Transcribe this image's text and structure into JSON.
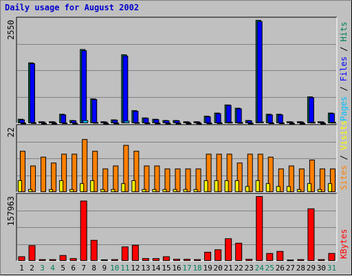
{
  "chart_data": {
    "type": "bar",
    "title": "Daily usage for August 2002",
    "categories": [
      "1",
      "2",
      "3",
      "4",
      "5",
      "6",
      "7",
      "8",
      "9",
      "10",
      "11",
      "12",
      "13",
      "14",
      "15",
      "16",
      "17",
      "18",
      "19",
      "20",
      "21",
      "22",
      "23",
      "24",
      "25",
      "26",
      "27",
      "28",
      "29",
      "30",
      "31"
    ],
    "weekend_days": [
      "3",
      "4",
      "10",
      "11",
      "17",
      "18",
      "24",
      "25",
      "31"
    ],
    "colors": {
      "hits": "#00805c",
      "files": "#0000ff",
      "pages": "#00c0ff",
      "sites": "#ff8000",
      "visits": "#ffff00",
      "kbytes": "#ff0000",
      "weekday_tick": "#000000",
      "weekend_tick": "#00805c",
      "title": "#0000cc",
      "panel": "#c0c0c0"
    },
    "panels": [
      {
        "ymax_label": "2550",
        "ylim": [
          0,
          2550
        ],
        "legend": [
          {
            "text": "Pages",
            "series": "pages"
          },
          {
            "text": " / ",
            "series": null
          },
          {
            "text": "Files",
            "series": "files"
          },
          {
            "text": " / ",
            "series": null
          },
          {
            "text": "Hits",
            "series": "hits"
          }
        ],
        "series": [
          {
            "name": "Hits",
            "key": "hits",
            "values": [
              107,
              1500,
              46,
              46,
              230,
              76,
              1830,
              610,
              46,
              92,
              1700,
              320,
              140,
              107,
              76,
              76,
              46,
              46,
              183,
              260,
              460,
              380,
              76,
              2550,
              230,
              230,
              46,
              46,
              660,
              46,
              260
            ]
          },
          {
            "name": "Files",
            "key": "files",
            "values": [
              92,
              1480,
              38,
              38,
              214,
              69,
              1800,
              595,
              38,
              84,
              1670,
              306,
              130,
              99,
              69,
              69,
              38,
              38,
              168,
              245,
              450,
              365,
              69,
              2520,
              214,
              214,
              38,
              38,
              640,
              38,
              245
            ]
          },
          {
            "name": "Pages",
            "key": "pages",
            "values": [
              12,
              20,
              8,
              8,
              15,
              10,
              75,
              26,
              8,
              12,
              60,
              22,
              15,
              12,
              10,
              10,
              8,
              8,
              14,
              18,
              30,
              24,
              10,
              40,
              16,
              16,
              8,
              8,
              30,
              8,
              30
            ]
          }
        ]
      },
      {
        "ymax_label": "22",
        "ylim": [
          0,
          22
        ],
        "legend": [
          {
            "text": "Sites",
            "series": "sites"
          },
          {
            "text": " / ",
            "series": null
          },
          {
            "text": "Visits",
            "series": "visits"
          }
        ],
        "series": [
          {
            "name": "Visits",
            "key": "visits",
            "values": [
              14,
              9,
              12,
              10,
              13,
              13,
              18,
              14,
              8,
              9,
              16,
              14,
              9,
              9,
              8,
              8,
              8,
              8,
              13,
              13,
              13,
              10,
              13,
              13,
              12,
              8,
              9,
              8,
              11,
              8,
              8
            ]
          },
          {
            "name": "Sites",
            "key": "sites",
            "values": [
              4,
              1,
              0,
              1,
              4,
              1,
              3,
              4,
              1,
              1,
              3,
              4,
              1,
              1,
              1,
              1,
              1,
              1,
              4,
              4,
              4,
              4,
              2,
              4,
              3,
              2,
              2,
              1,
              3,
              1,
              3
            ]
          }
        ]
      },
      {
        "ymax_label": "157963",
        "ylim": [
          0,
          157963
        ],
        "legend": [
          {
            "text": "KBytes",
            "series": "kbytes"
          }
        ],
        "series": [
          {
            "name": "KBytes",
            "key": "kbytes",
            "values": [
              11000,
              38000,
              4000,
              4000,
              14000,
              6500,
              147000,
              51000,
              3500,
              4000,
              35000,
              39000,
              6500,
              6500,
              11000,
              4800,
              4800,
              4000,
              22000,
              28000,
              55000,
              44000,
              4800,
              162000,
              19000,
              24000,
              3000,
              4000,
              128000,
              4000,
              19000
            ]
          }
        ]
      }
    ]
  }
}
